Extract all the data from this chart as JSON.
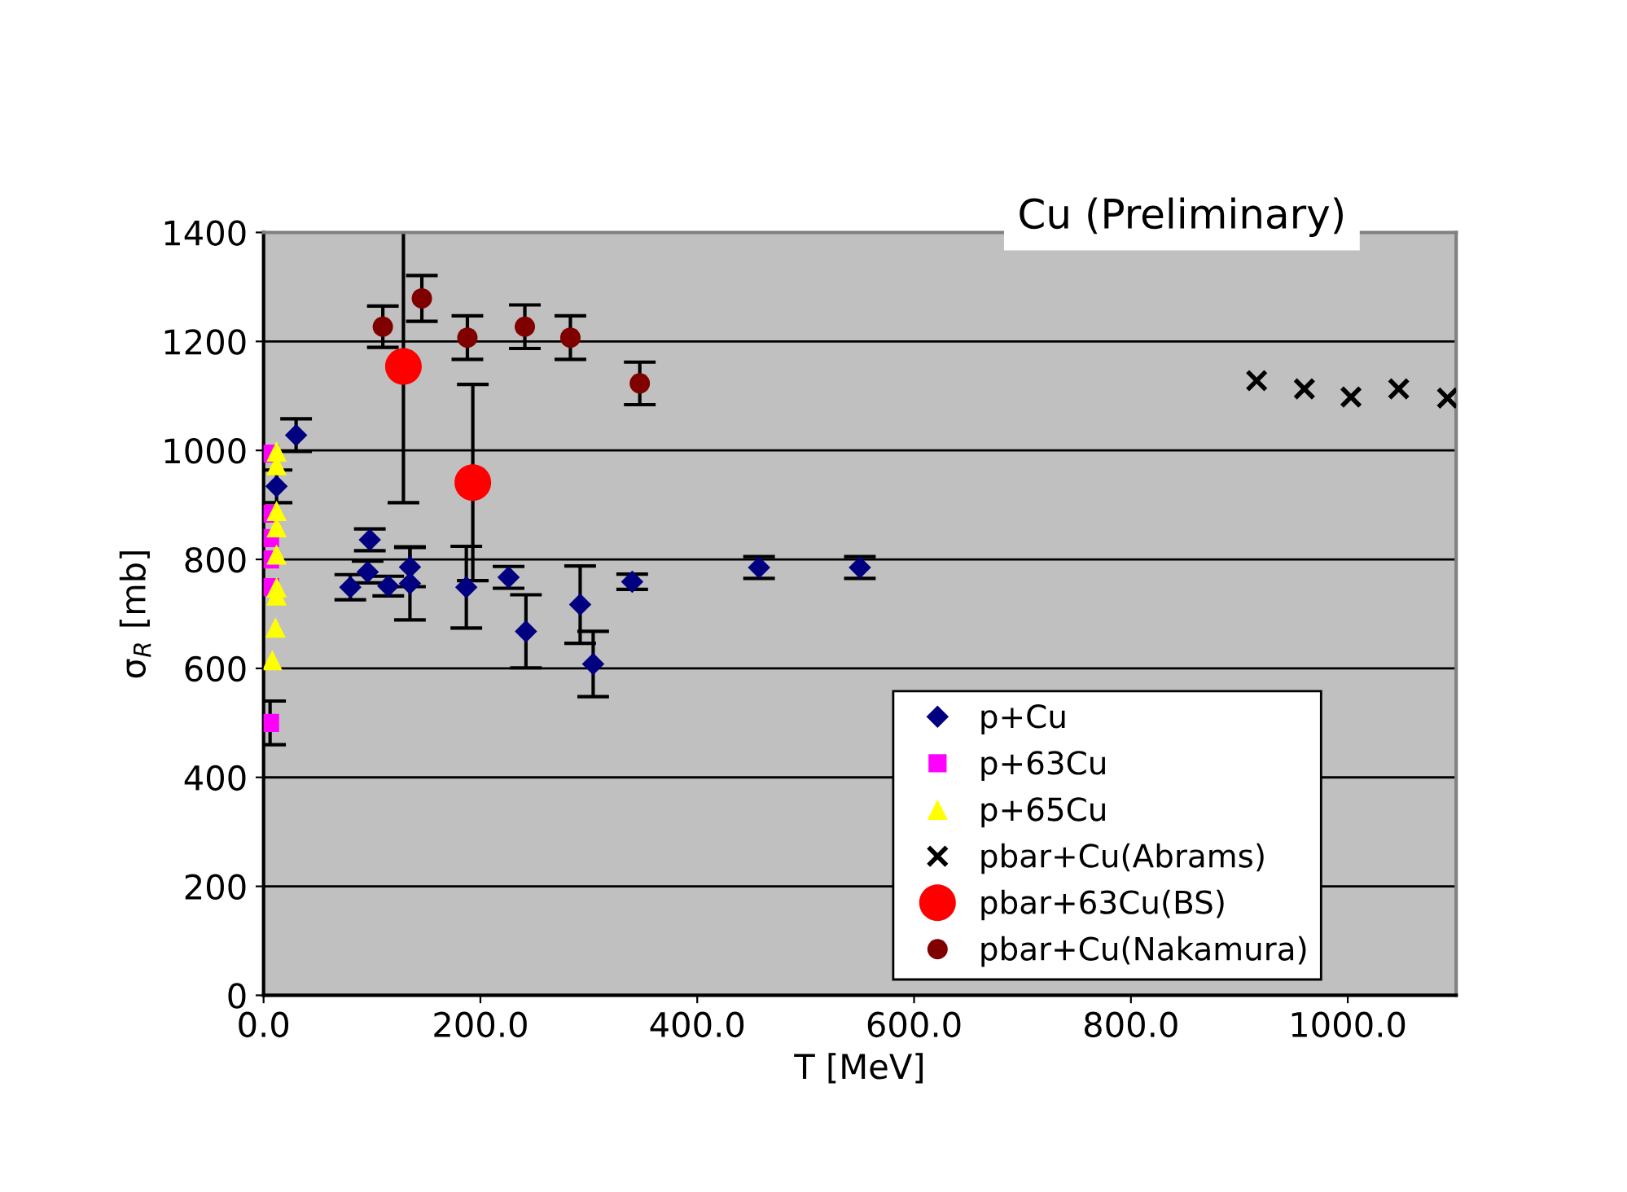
{
  "chart_data": {
    "type": "scatter",
    "title": "Cu (Preliminary)",
    "xlabel": "T [MeV]",
    "ylabel": "σ$_{R}$ [mb]",
    "xlim": [
      0,
      1100
    ],
    "ylim": [
      0,
      1400
    ],
    "xticks": [
      {
        "value": 0,
        "label": "0.0"
      },
      {
        "value": 200,
        "label": "200.0"
      },
      {
        "value": 400,
        "label": "400.0"
      },
      {
        "value": 600,
        "label": "600.0"
      },
      {
        "value": 800,
        "label": "800.0"
      },
      {
        "value": 1000,
        "label": "1000.0"
      }
    ],
    "yticks": [
      0,
      200,
      400,
      600,
      800,
      1000,
      1200,
      1400
    ],
    "grid": "y",
    "legend": "bottom right",
    "series": [
      {
        "name": "p+Cu",
        "color": "#000080",
        "marker": "diamond",
        "x": [
          12,
          17,
          30,
          80,
          96,
          98,
          115,
          135,
          135,
          187,
          226,
          242,
          292,
          304,
          340,
          457,
          550
        ],
        "values": [
          934,
          null,
          1028,
          749,
          777,
          836,
          751,
          786,
          756,
          749,
          767,
          668,
          717,
          608,
          759,
          785,
          785
        ],
        "errors": [
          30,
          null,
          30,
          23,
          20,
          20,
          18,
          36,
          67,
          75,
          20,
          67,
          71,
          60,
          14,
          20,
          20
        ]
      },
      {
        "name": "p+63Cu",
        "color": "#ff00ff",
        "marker": "square",
        "x": [
          6,
          6,
          6,
          6,
          6,
          6
        ],
        "values": [
          500,
          994,
          884,
          839,
          800,
          749
        ],
        "errors": [
          40,
          null,
          null,
          null,
          null,
          null
        ]
      },
      {
        "name": "p+65Cu",
        "color": "#ffff00",
        "marker": "triangle",
        "x": [
          12,
          12,
          12,
          12,
          12,
          12,
          12,
          11,
          8
        ],
        "values": [
          998,
          973,
          889,
          859,
          809,
          749,
          734,
          675,
          615
        ]
      },
      {
        "name": "pbar+Cu(Abrams)",
        "color": "#000000",
        "marker": "cross",
        "x": [
          916,
          960,
          1003,
          1047,
          1092
        ],
        "values": [
          1128,
          1113,
          1098,
          1113,
          1096
        ]
      },
      {
        "name": "pbar+63Cu(BS)",
        "color": "#ff0000",
        "marker": "circle",
        "x": [
          129,
          193
        ],
        "values": [
          1154,
          941
        ],
        "errors": [
          250,
          180
        ]
      },
      {
        "name": "pbar+Cu(Nakamura)",
        "color": "#800000",
        "marker": "circle",
        "x": [
          110,
          146,
          188,
          241,
          283,
          347
        ],
        "values": [
          1227,
          1279,
          1207,
          1227,
          1207,
          1123
        ],
        "errors": [
          38,
          42,
          40,
          40,
          40,
          39
        ]
      }
    ]
  }
}
